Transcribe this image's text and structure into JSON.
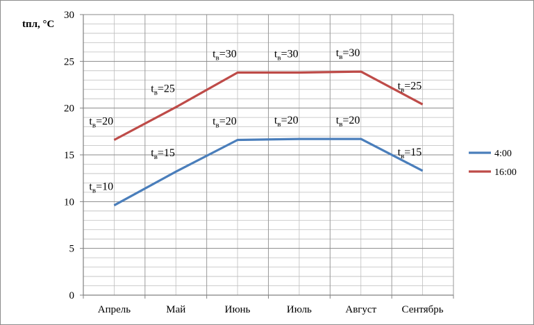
{
  "chart_data": {
    "type": "line",
    "ylabel": "tпл, °C",
    "categories": [
      "Апрель",
      "Май",
      "Июнь",
      "Июль",
      "Август",
      "Сентябрь"
    ],
    "ylim": [
      0,
      30
    ],
    "yticks": [
      0,
      5,
      10,
      15,
      20,
      25,
      30
    ],
    "grid": true,
    "legend_position": "right",
    "series": [
      {
        "name": "4:00",
        "color": "#4a7ebb",
        "values": [
          9.6,
          13.2,
          16.6,
          16.7,
          16.7,
          13.3
        ],
        "annotations": [
          "10",
          "15",
          "20",
          "20",
          "20",
          "15"
        ]
      },
      {
        "name": "16:00",
        "color": "#be4b48",
        "values": [
          16.6,
          20.1,
          23.8,
          23.8,
          23.9,
          20.4
        ],
        "annotations": [
          "20",
          "25",
          "30",
          "30",
          "30",
          "25"
        ]
      }
    ],
    "annotation_prefix": "t",
    "annotation_subscript": "в",
    "annotation_joiner": "="
  }
}
